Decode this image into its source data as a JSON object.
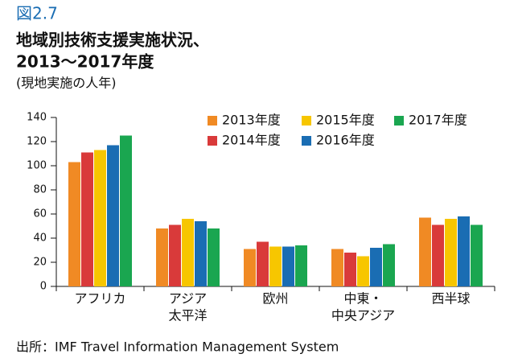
{
  "chart_data": {
    "type": "bar",
    "figure_label": "図2.7",
    "title": [
      "地域別技術支援実施状況、",
      "2013〜2017年度"
    ],
    "subtitle": "(現地実施の人年)",
    "source": "出所：IMF Travel Information Management System",
    "categories": [
      [
        "アフリカ"
      ],
      [
        "アジア",
        "太平洋"
      ],
      [
        "欧州"
      ],
      [
        "中東・",
        "中央アジア"
      ],
      [
        "西半球"
      ]
    ],
    "series": [
      {
        "name": "2013年度",
        "color": "#f08a24",
        "values": [
          103,
          48,
          31,
          31,
          57
        ]
      },
      {
        "name": "2014年度",
        "color": "#d93a3a",
        "values": [
          111,
          51,
          37,
          28,
          51
        ]
      },
      {
        "name": "2015年度",
        "color": "#f7c600",
        "values": [
          113,
          56,
          33,
          25,
          56
        ]
      },
      {
        "name": "2016年度",
        "color": "#1a6db3",
        "values": [
          117,
          54,
          33,
          32,
          58
        ]
      },
      {
        "name": "2017年度",
        "color": "#1aa650",
        "values": [
          125,
          48,
          34,
          35,
          51
        ]
      }
    ],
    "ylim": [
      0,
      140
    ],
    "yticks": [
      0,
      20,
      40,
      60,
      80,
      100,
      120,
      140
    ]
  }
}
